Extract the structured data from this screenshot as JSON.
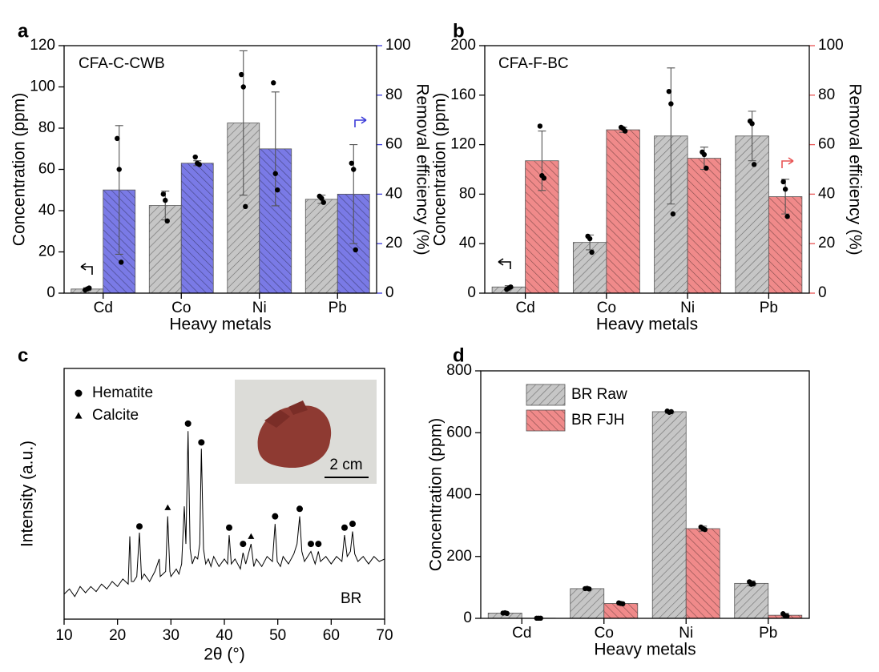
{
  "chart_data": [
    {
      "type": "bar",
      "panel": "a",
      "annotation": "CFA-C-CWB",
      "categories": [
        "Cd",
        "Co",
        "Ni",
        "Pb"
      ],
      "xlabel": "Heavy metals",
      "ylabel": "Concentration (ppm)",
      "y2label": "Removal efficiency (%)",
      "y2color": "#3c3cd8",
      "ylim": [
        0,
        120
      ],
      "yticks": [
        0,
        20,
        40,
        60,
        80,
        100,
        120
      ],
      "y2lim": [
        0,
        100
      ],
      "y2ticks": [
        0,
        20,
        40,
        60,
        80,
        100
      ],
      "series": [
        {
          "color": "#c6c6c6",
          "values": [
            2,
            42.5,
            82.5,
            45.5
          ],
          "errors": [
            0.6,
            7,
            35,
            2
          ],
          "points": [
            [
              1.5,
              2,
              2.5
            ],
            [
              48,
              45,
              35
            ],
            [
              106,
              100,
              42
            ],
            [
              47,
              46,
              44
            ]
          ]
        },
        {
          "color": "#7a7ae6",
          "axis": "y2",
          "values": [
            41.7,
            52.5,
            58.3,
            40
          ],
          "errors": [
            26,
            1,
            23,
            20
          ],
          "points": [
            [
              62.5,
              50,
              12.5
            ],
            [
              55,
              52.5,
              52
            ],
            [
              85,
              48.3,
              41.7
            ],
            [
              52.5,
              50,
              17.5
            ]
          ]
        }
      ]
    },
    {
      "type": "bar",
      "panel": "b",
      "annotation": "CFA-F-BC",
      "categories": [
        "Cd",
        "Co",
        "Ni",
        "Pb"
      ],
      "xlabel": "Heavy metals",
      "ylabel": "Concentration (ppm)",
      "y2label": "Removal efficiency (%)",
      "y2color": "#e85454",
      "ylim": [
        0,
        200
      ],
      "yticks": [
        0,
        40,
        80,
        120,
        160,
        200
      ],
      "y2lim": [
        0,
        100
      ],
      "y2ticks": [
        0,
        20,
        40,
        60,
        80,
        100
      ],
      "series": [
        {
          "color": "#c6c6c6",
          "values": [
            5,
            41,
            127,
            127
          ],
          "errors": [
            1,
            6,
            55,
            20
          ],
          "points": [
            [
              3,
              4,
              5
            ],
            [
              46,
              44,
              33
            ],
            [
              163,
              153,
              64
            ],
            [
              139,
              137,
              104
            ]
          ]
        },
        {
          "color": "#f08a8a",
          "axis": "y2",
          "values": [
            53.5,
            66,
            54.5,
            39
          ],
          "errors": [
            12,
            1,
            4.5,
            7
          ],
          "points": [
            [
              67.5,
              47.5,
              46.5
            ],
            [
              67,
              66.5,
              65.5
            ],
            [
              57,
              56,
              50.5
            ],
            [
              45,
              42,
              31
            ]
          ]
        }
      ]
    },
    {
      "type": "line",
      "panel": "c",
      "xlabel": "2θ (°)",
      "ylabel": "Intensity (a.u.)",
      "xlim": [
        10,
        70
      ],
      "xticks": [
        10,
        20,
        30,
        40,
        50,
        60,
        70
      ],
      "ylim": [
        0,
        100
      ],
      "color": "#000000",
      "annotation": "BR",
      "scale_label": "2 cm",
      "x": [
        10,
        11,
        12,
        13,
        14,
        15,
        16,
        17,
        18,
        19,
        20,
        21,
        22,
        22.3,
        22.6,
        23,
        23.6,
        24.1,
        24.5,
        25,
        26,
        27,
        27.8,
        28,
        29,
        29.4,
        29.8,
        30,
        31,
        31.5,
        32,
        32.5,
        32.8,
        33.2,
        33.6,
        34,
        34.5,
        35,
        35.4,
        35.7,
        36.1,
        36.5,
        37,
        37.5,
        38,
        39,
        40,
        40.6,
        40.9,
        41.3,
        42,
        43,
        43.5,
        44,
        45,
        45.5,
        46,
        47,
        48,
        49,
        49.5,
        49.9,
        50.5,
        51,
        52,
        53,
        53.6,
        54.1,
        54.5,
        55,
        56.2,
        57,
        57.6,
        58,
        59,
        60,
        61,
        62,
        62.5,
        63,
        63.6,
        64,
        64.4,
        65,
        66,
        67,
        68,
        69,
        70
      ],
      "values": [
        10,
        12,
        9,
        13,
        10.5,
        13,
        11,
        14,
        12,
        15,
        13,
        16,
        14,
        33,
        15,
        15,
        17,
        34.5,
        16,
        18,
        15,
        19,
        24,
        17,
        19,
        41,
        19,
        17,
        20,
        18,
        22,
        45,
        30,
        75,
        28,
        22,
        25,
        24,
        30,
        68,
        28,
        22,
        24,
        21,
        25,
        21,
        24,
        22,
        33.5,
        22,
        24,
        20,
        26.5,
        22,
        30,
        21,
        24,
        21,
        25,
        23,
        38,
        23,
        21,
        25,
        22,
        26,
        30,
        41,
        27,
        23,
        27,
        22,
        27,
        23,
        25,
        22,
        25,
        23,
        33.5,
        25,
        27,
        35,
        26,
        23,
        25,
        22,
        25,
        23,
        24
      ],
      "markers": [
        {
          "name": "Hematite",
          "shape": "circle",
          "x": [
            24.1,
            33.2,
            35.7,
            40.9,
            43.5,
            49.5,
            54.1,
            56.2,
            57.6,
            62.5,
            64.0
          ],
          "y": [
            37,
            78,
            70.5,
            36.5,
            30,
            41,
            44,
            30,
            30,
            36.5,
            38
          ]
        },
        {
          "name": "Calcite",
          "shape": "triangle",
          "x": [
            29.4,
            45.0
          ],
          "y": [
            44.5,
            33
          ]
        }
      ]
    },
    {
      "type": "bar",
      "panel": "d",
      "categories": [
        "Cd",
        "Co",
        "Ni",
        "Pb"
      ],
      "xlabel": "Heavy metals",
      "ylabel": "Concentration (ppm)",
      "ylim": [
        0,
        800
      ],
      "yticks": [
        0,
        200,
        400,
        600,
        800
      ],
      "legend": "upper left",
      "series": [
        {
          "name": "BR Raw",
          "color": "#c6c6c6",
          "values": [
            17,
            96,
            668,
            113
          ],
          "errors": [
            2,
            3,
            5,
            8
          ],
          "points": [
            [
              17,
              18,
              16
            ],
            [
              96,
              97,
              95
            ],
            [
              670,
              666,
              668
            ],
            [
              118,
              110,
              112
            ]
          ]
        },
        {
          "name": "BR FJH",
          "color": "#f08a8a",
          "values": [
            0.5,
            48,
            290,
            10
          ],
          "errors": [
            0.5,
            4,
            8,
            6
          ],
          "points": [
            [
              0.5,
              0.5,
              0.5
            ],
            [
              50,
              48,
              47
            ],
            [
              295,
              290,
              287
            ],
            [
              15,
              8,
              7
            ]
          ]
        }
      ]
    }
  ]
}
